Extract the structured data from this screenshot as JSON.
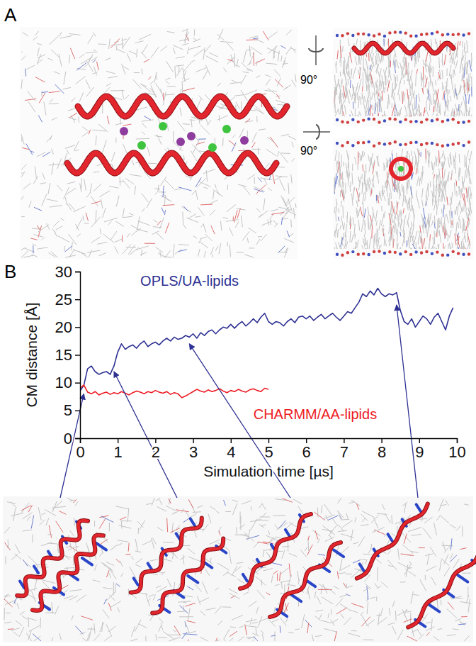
{
  "panel_labels": [
    "A",
    "B"
  ],
  "panel_a": {
    "rotation_labels": [
      "90°",
      "90°"
    ]
  },
  "chart_data": {
    "type": "line",
    "x_label": "Simulation time [µs]",
    "y_label": "CM distance [Å]",
    "xlim": [
      0,
      10
    ],
    "xticks": [
      0,
      1,
      2,
      3,
      4,
      5,
      6,
      7,
      8,
      9,
      10
    ],
    "ylim": [
      0,
      30
    ],
    "yticks": [
      0,
      5,
      10,
      15,
      20,
      25,
      30
    ],
    "grid": false,
    "series": [
      {
        "name": "OPLS/UA-lipids",
        "color": "#2e3192",
        "x": [
          0,
          0.1,
          0.2,
          0.3,
          0.4,
          0.5,
          0.6,
          0.7,
          0.8,
          0.9,
          1.0,
          1.1,
          1.2,
          1.3,
          1.4,
          1.5,
          1.6,
          1.7,
          1.8,
          1.9,
          2.0,
          2.1,
          2.2,
          2.3,
          2.4,
          2.5,
          2.6,
          2.7,
          2.8,
          2.9,
          3.0,
          3.1,
          3.2,
          3.3,
          3.4,
          3.5,
          3.6,
          3.7,
          3.8,
          3.9,
          4.0,
          4.1,
          4.2,
          4.3,
          4.4,
          4.5,
          4.6,
          4.7,
          4.8,
          4.9,
          5.0,
          5.1,
          5.2,
          5.3,
          5.4,
          5.5,
          5.6,
          5.7,
          5.8,
          5.9,
          6.0,
          6.1,
          6.2,
          6.3,
          6.4,
          6.5,
          6.6,
          6.7,
          6.8,
          6.9,
          7.0,
          7.1,
          7.2,
          7.3,
          7.4,
          7.5,
          7.6,
          7.7,
          7.8,
          7.9,
          8.0,
          8.1,
          8.2,
          8.3,
          8.4,
          8.5,
          8.6,
          8.7,
          8.8,
          8.9,
          9.0,
          9.1,
          9.2,
          9.3,
          9.4,
          9.5,
          9.6,
          9.7,
          9.8,
          9.9
        ],
        "values": [
          8.5,
          9.5,
          12.5,
          13.0,
          12.0,
          11.5,
          11.8,
          12.0,
          11.5,
          13.0,
          15.5,
          17.0,
          16.0,
          16.5,
          16.8,
          16.2,
          17.0,
          17.5,
          16.5,
          17.0,
          17.3,
          16.8,
          17.5,
          18.0,
          17.5,
          18.2,
          17.8,
          18.0,
          18.5,
          18.2,
          18.8,
          18.0,
          19.0,
          18.5,
          19.2,
          19.5,
          18.8,
          19.5,
          20.0,
          19.8,
          20.5,
          19.8,
          20.5,
          21.0,
          20.2,
          20.8,
          21.5,
          20.8,
          21.8,
          22.5,
          21.0,
          20.5,
          21.0,
          20.8,
          20.2,
          21.0,
          21.5,
          20.8,
          21.8,
          22.0,
          21.5,
          22.0,
          21.2,
          21.8,
          22.3,
          21.5,
          22.0,
          22.5,
          21.8,
          21.2,
          22.0,
          22.8,
          22.5,
          23.5,
          24.5,
          26.0,
          25.5,
          26.5,
          25.8,
          27.0,
          26.0,
          25.5,
          26.0,
          25.8,
          26.2,
          23.0,
          21.0,
          20.5,
          21.5,
          20.0,
          21.0,
          22.0,
          21.5,
          20.5,
          21.8,
          22.5,
          21.0,
          19.5,
          22.0,
          23.5
        ]
      },
      {
        "name": "CHARMM/AA-lipids",
        "color": "#ed1c24",
        "x": [
          0,
          0.1,
          0.2,
          0.3,
          0.4,
          0.5,
          0.6,
          0.7,
          0.8,
          0.9,
          1.0,
          1.1,
          1.2,
          1.3,
          1.4,
          1.5,
          1.6,
          1.7,
          1.8,
          1.9,
          2.0,
          2.1,
          2.2,
          2.3,
          2.4,
          2.5,
          2.6,
          2.7,
          2.8,
          2.9,
          3.0,
          3.1,
          3.2,
          3.3,
          3.4,
          3.5,
          3.6,
          3.7,
          3.8,
          3.9,
          4.0,
          4.1,
          4.2,
          4.3,
          4.4,
          4.5,
          4.6,
          4.7,
          4.8,
          4.9,
          5.0
        ],
        "values": [
          9.0,
          9.6,
          8.3,
          8.0,
          8.4,
          7.8,
          8.1,
          8.3,
          7.9,
          8.2,
          8.0,
          8.4,
          8.1,
          7.8,
          8.2,
          8.5,
          8.3,
          8.0,
          8.4,
          8.2,
          8.6,
          8.3,
          8.1,
          8.4,
          7.9,
          8.2,
          8.0,
          7.3,
          7.6,
          8.0,
          8.4,
          8.8,
          8.5,
          8.3,
          8.7,
          8.4,
          8.6,
          8.9,
          8.5,
          8.2,
          8.6,
          8.4,
          8.8,
          8.5,
          8.3,
          8.7,
          8.9,
          8.6,
          8.4,
          9.0,
          8.8
        ]
      }
    ],
    "snapshot_times": [
      0.1,
      0.9,
      2.9,
      8.4
    ],
    "snapshot_distances": [
      8,
      12,
      17,
      24
    ]
  }
}
